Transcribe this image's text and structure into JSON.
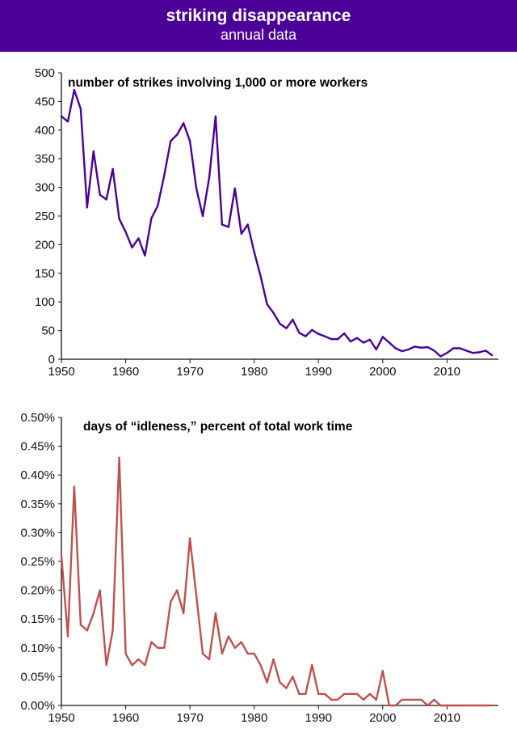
{
  "header": {
    "title": "striking disappearance",
    "subtitle": "annual data"
  },
  "colors": {
    "header_bg": "#4b0097",
    "strikes_line": "#4b0097",
    "idleness_line": "#c0504d"
  },
  "chart_data": [
    {
      "type": "line",
      "title": "number of strikes involving 1,000 or more workers",
      "xlabel": "",
      "ylabel": "",
      "xlim": [
        1950,
        2018
      ],
      "ylim": [
        0,
        500
      ],
      "x_ticks": [
        1950,
        1960,
        1970,
        1980,
        1990,
        2000,
        2010
      ],
      "y_ticks": [
        0,
        50,
        100,
        150,
        200,
        250,
        300,
        350,
        400,
        450,
        500
      ],
      "y_tick_labels": [
        "0",
        "50",
        "100",
        "150",
        "200",
        "250",
        "300",
        "350",
        "400",
        "450",
        "500"
      ],
      "x": [
        1950,
        1951,
        1952,
        1953,
        1954,
        1955,
        1956,
        1957,
        1958,
        1959,
        1960,
        1961,
        1962,
        1963,
        1964,
        1965,
        1966,
        1967,
        1968,
        1969,
        1970,
        1971,
        1972,
        1973,
        1974,
        1975,
        1976,
        1977,
        1978,
        1979,
        1980,
        1981,
        1982,
        1983,
        1984,
        1985,
        1986,
        1987,
        1988,
        1989,
        1990,
        1991,
        1992,
        1993,
        1994,
        1995,
        1996,
        1997,
        1998,
        1999,
        2000,
        2001,
        2002,
        2003,
        2004,
        2005,
        2006,
        2007,
        2008,
        2009,
        2010,
        2011,
        2012,
        2013,
        2014,
        2015,
        2016,
        2017
      ],
      "values": [
        424,
        415,
        470,
        437,
        265,
        363,
        287,
        279,
        332,
        245,
        222,
        195,
        211,
        181,
        246,
        268,
        321,
        381,
        392,
        412,
        381,
        298,
        250,
        317,
        424,
        235,
        231,
        298,
        219,
        235,
        187,
        145,
        96,
        81,
        62,
        54,
        69,
        46,
        40,
        51,
        44,
        40,
        35,
        35,
        45,
        31,
        37,
        29,
        34,
        17,
        39,
        29,
        19,
        14,
        17,
        22,
        20,
        21,
        15,
        5,
        11,
        19,
        19,
        15,
        11,
        12,
        15,
        7
      ],
      "grid": false
    },
    {
      "type": "line",
      "title": "days of “idleness,” percent of total work time",
      "xlabel": "",
      "ylabel": "",
      "xlim": [
        1950,
        2018
      ],
      "ylim": [
        0,
        0.5
      ],
      "x_ticks": [
        1950,
        1960,
        1970,
        1980,
        1990,
        2000,
        2010
      ],
      "y_ticks": [
        0,
        0.05,
        0.1,
        0.15,
        0.2,
        0.25,
        0.3,
        0.35,
        0.4,
        0.45,
        0.5
      ],
      "y_tick_labels": [
        "0.00%",
        "0.05%",
        "0.10%",
        "0.15%",
        "0.20%",
        "0.25%",
        "0.30%",
        "0.35%",
        "0.40%",
        "0.45%",
        "0.50%"
      ],
      "x": [
        1950,
        1951,
        1952,
        1953,
        1954,
        1955,
        1956,
        1957,
        1958,
        1959,
        1960,
        1961,
        1962,
        1963,
        1964,
        1965,
        1966,
        1967,
        1968,
        1969,
        1970,
        1971,
        1972,
        1973,
        1974,
        1975,
        1976,
        1977,
        1978,
        1979,
        1980,
        1981,
        1982,
        1983,
        1984,
        1985,
        1986,
        1987,
        1988,
        1989,
        1990,
        1991,
        1992,
        1993,
        1994,
        1995,
        1996,
        1997,
        1998,
        1999,
        2000,
        2001,
        2002,
        2003,
        2004,
        2005,
        2006,
        2007,
        2008,
        2009,
        2010,
        2011,
        2012,
        2013,
        2014,
        2015,
        2016,
        2017
      ],
      "values": [
        0.26,
        0.12,
        0.38,
        0.14,
        0.13,
        0.16,
        0.2,
        0.07,
        0.13,
        0.43,
        0.09,
        0.07,
        0.08,
        0.07,
        0.11,
        0.1,
        0.1,
        0.18,
        0.2,
        0.16,
        0.29,
        0.19,
        0.09,
        0.08,
        0.16,
        0.09,
        0.12,
        0.1,
        0.11,
        0.09,
        0.09,
        0.07,
        0.04,
        0.08,
        0.04,
        0.03,
        0.05,
        0.02,
        0.02,
        0.07,
        0.02,
        0.02,
        0.01,
        0.01,
        0.02,
        0.02,
        0.02,
        0.01,
        0.02,
        0.01,
        0.06,
        0.0,
        0.0,
        0.01,
        0.01,
        0.01,
        0.01,
        0.0,
        0.01,
        0.0,
        0.0,
        0.0,
        0.0,
        0.0,
        0.0,
        0.0,
        0.0,
        0.0
      ],
      "grid": false
    }
  ]
}
